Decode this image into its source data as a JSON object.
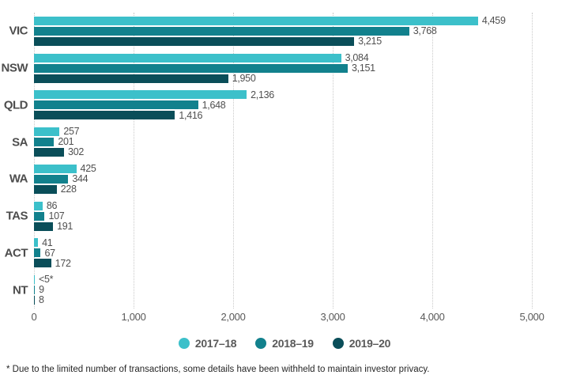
{
  "chart_data": {
    "type": "bar",
    "orientation": "horizontal",
    "title": "",
    "xlabel": "",
    "ylabel": "",
    "xlim": [
      0,
      5000
    ],
    "x_ticks": [
      0,
      1000,
      2000,
      3000,
      4000,
      5000
    ],
    "x_tick_labels": [
      "0",
      "1,000",
      "2,000",
      "3,000",
      "4,000",
      "5,000"
    ],
    "grid": "vertical-dotted",
    "legend_position": "bottom-center",
    "categories": [
      "VIC",
      "NSW",
      "QLD",
      "SA",
      "WA",
      "TAS",
      "ACT",
      "NT"
    ],
    "series": [
      {
        "name": "2017–18",
        "color": "#3cc0ca",
        "values": [
          4459,
          3084,
          2136,
          257,
          425,
          86,
          41,
          4
        ],
        "labels": [
          "4,459",
          "3,084",
          "2,136",
          "257",
          "425",
          "86",
          "41",
          "<5*"
        ]
      },
      {
        "name": "2018–19",
        "color": "#12818d",
        "values": [
          3768,
          3151,
          1648,
          201,
          344,
          107,
          67,
          9
        ],
        "labels": [
          "3,768",
          "3,151",
          "1,648",
          "201",
          "344",
          "107",
          "67",
          "9"
        ]
      },
      {
        "name": "2019–20",
        "color": "#0a4e59",
        "values": [
          3215,
          1950,
          1416,
          302,
          228,
          191,
          172,
          8
        ],
        "labels": [
          "3,215",
          "1,950",
          "1,416",
          "302",
          "228",
          "191",
          "172",
          "8"
        ]
      }
    ]
  },
  "footnote": "* Due to the limited number of transactions, some details have been withheld to maintain investor privacy."
}
